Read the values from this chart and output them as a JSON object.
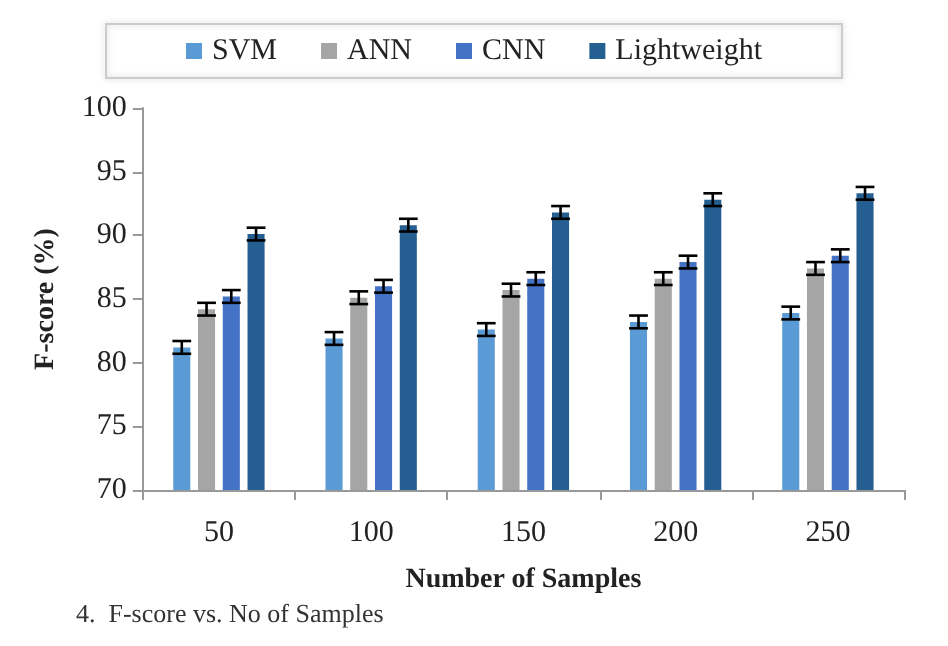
{
  "chart_data": {
    "type": "bar",
    "xlabel": "Number of Samples",
    "ylabel": "F-score (%)",
    "categories": [
      "50",
      "100",
      "150",
      "200",
      "250"
    ],
    "series": [
      {
        "name": "SVM",
        "color": "#5b9bd5",
        "values": [
          81.2,
          81.9,
          82.6,
          83.2,
          83.9
        ],
        "errors": [
          0.5,
          0.5,
          0.5,
          0.5,
          0.5
        ]
      },
      {
        "name": "ANN",
        "color": "#a5a5a5",
        "values": [
          84.2,
          85.1,
          85.7,
          86.6,
          87.4
        ],
        "errors": [
          0.5,
          0.5,
          0.5,
          0.5,
          0.5
        ]
      },
      {
        "name": "CNN",
        "color": "#4472c4",
        "values": [
          85.2,
          86.0,
          86.6,
          87.9,
          88.4
        ],
        "errors": [
          0.5,
          0.5,
          0.5,
          0.5,
          0.5
        ]
      },
      {
        "name": "Lightweight",
        "color": "#255e91",
        "values": [
          90.1,
          90.8,
          91.8,
          92.8,
          93.3
        ],
        "errors": [
          0.5,
          0.5,
          0.5,
          0.5,
          0.5
        ]
      }
    ],
    "ylim": [
      70,
      100
    ],
    "yticks": [
      70,
      75,
      80,
      85,
      90,
      95,
      100
    ],
    "grid": false,
    "legend": "top",
    "annotations": [
      "4.  F-score vs. No of Samples"
    ]
  }
}
